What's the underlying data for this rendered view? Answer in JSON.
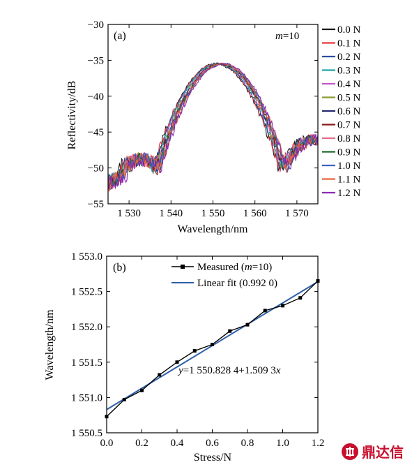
{
  "chart_data": [
    {
      "type": "line",
      "panel_tag": "(a)",
      "annotation_m_sym": "m",
      "annotation_m_val": "=10",
      "xlabel": "Wavelength/nm",
      "ylabel": "Reflectivity/dB",
      "xlim": [
        1525,
        1575
      ],
      "ylim": [
        -55,
        -30
      ],
      "xticks": [
        1530,
        1540,
        1550,
        1560,
        1570
      ],
      "xtick_labels": [
        "1 530",
        "1 540",
        "1 550",
        "1 560",
        "1 570"
      ],
      "yticks": [
        -55,
        -50,
        -45,
        -40,
        -35,
        -30
      ],
      "ytick_labels": [
        "−55",
        "−50",
        "−45",
        "−40",
        "−35",
        "−30"
      ],
      "grid": false,
      "legend_position": "right-outside",
      "series": [
        {
          "name": "0.0 N",
          "color": "#1a1a1a",
          "peak_x": 1550.7
        },
        {
          "name": "0.1 N",
          "color": "#e8383d",
          "peak_x": 1550.9
        },
        {
          "name": "0.2 N",
          "color": "#2b4f9e",
          "peak_x": 1551.1
        },
        {
          "name": "0.3 N",
          "color": "#1fa8a0",
          "peak_x": 1551.3
        },
        {
          "name": "0.4 N",
          "color": "#c458c8",
          "peak_x": 1551.5
        },
        {
          "name": "0.5 N",
          "color": "#8c9a2e",
          "peak_x": 1551.7
        },
        {
          "name": "0.6 N",
          "color": "#232b70",
          "peak_x": 1551.8
        },
        {
          "name": "0.7 N",
          "color": "#8b1a1a",
          "peak_x": 1551.9
        },
        {
          "name": "0.8 N",
          "color": "#e86a8a",
          "peak_x": 1552.0
        },
        {
          "name": "0.9 N",
          "color": "#1e6b2e",
          "peak_x": 1552.2
        },
        {
          "name": "1.0 N",
          "color": "#3a62c8",
          "peak_x": 1552.3
        },
        {
          "name": "1.1 N",
          "color": "#e8643a",
          "peak_x": 1552.4
        },
        {
          "name": "1.2 N",
          "color": "#8a2ab0",
          "peak_x": 1552.6
        }
      ]
    },
    {
      "type": "line",
      "panel_tag": "(b)",
      "xlabel": "Stress/N",
      "ylabel": "Wavelength/nm",
      "xlim": [
        0.0,
        1.2
      ],
      "ylim": [
        1550.5,
        1553.0
      ],
      "xticks": [
        0.0,
        0.2,
        0.4,
        0.6,
        0.8,
        1.0,
        1.2
      ],
      "xtick_labels": [
        "0.0",
        "0.2",
        "0.4",
        "0.6",
        "0.8",
        "1.0",
        "1.2"
      ],
      "yticks": [
        1550.5,
        1551.0,
        1551.5,
        1552.0,
        1552.5,
        1553.0
      ],
      "ytick_labels": [
        "1 550.5",
        "1 551.0",
        "1 551.5",
        "1 552.0",
        "1 552.5",
        "1 553.0"
      ],
      "grid": false,
      "legend_position": "top",
      "legend_measured_prefix": "Measured (",
      "legend_measured_m": "m",
      "legend_measured_suffix": "=10)",
      "legend_fit": "Linear fit (0.992 0)",
      "equation_y": "y",
      "equation_mid": "=1 550.828 4+1.509 3",
      "equation_x": "x",
      "series": [
        {
          "name": "Measured (m=10)",
          "color": "#000000",
          "x": [
            0.0,
            0.1,
            0.2,
            0.3,
            0.4,
            0.5,
            0.6,
            0.7,
            0.8,
            0.9,
            1.0,
            1.1,
            1.2
          ],
          "y": [
            1550.73,
            1550.97,
            1551.1,
            1551.32,
            1551.5,
            1551.66,
            1551.75,
            1551.94,
            1552.03,
            1552.23,
            1552.3,
            1552.41,
            1552.65
          ]
        },
        {
          "name": "Linear fit (0.992 0)",
          "color": "#2f5fa8",
          "intercept": 1550.8284,
          "slope": 1.5093
        }
      ]
    }
  ],
  "watermark": {
    "text": "鼎达信",
    "color": "#c8102e"
  }
}
